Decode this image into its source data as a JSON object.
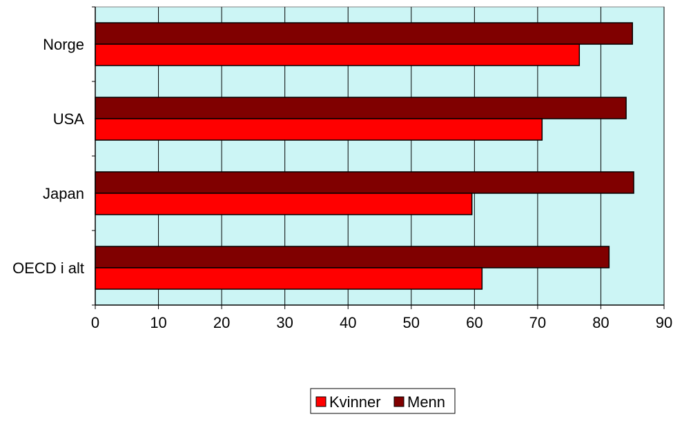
{
  "chart_data": {
    "type": "bar",
    "orientation": "horizontal",
    "categories": [
      "Norge",
      "USA",
      "Japan",
      "OECD i alt"
    ],
    "series": [
      {
        "name": "Menn",
        "color": "#800000",
        "values": [
          85,
          84,
          85.2,
          81.3
        ]
      },
      {
        "name": "Kvinner",
        "color": "#ff0000",
        "values": [
          76.6,
          70.7,
          59.6,
          61.2
        ]
      }
    ],
    "legend_order": [
      "Kvinner",
      "Menn"
    ],
    "xlim": [
      0,
      90
    ],
    "xticks": [
      0,
      10,
      20,
      30,
      40,
      50,
      60,
      70,
      80,
      90
    ],
    "grid": "vertical",
    "plot_background": "#ccf5f5",
    "legend_position": "bottom-center",
    "title": "",
    "xlabel": "",
    "ylabel": ""
  }
}
